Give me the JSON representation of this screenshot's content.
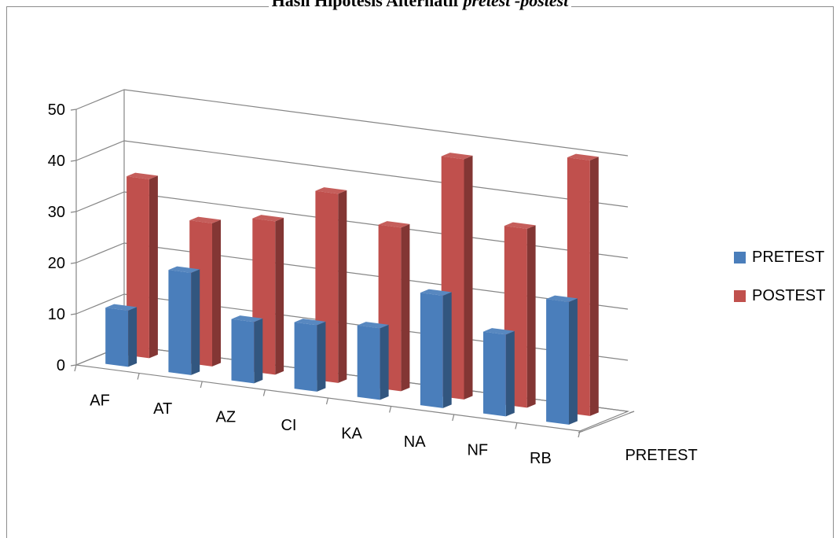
{
  "chart_data": {
    "type": "bar",
    "title_bold": "Hasil Hipotesis Alternatif ",
    "title_italic": "pretest -postest",
    "categories": [
      "AF",
      "AT",
      "AZ",
      "CI",
      "KA",
      "NA",
      "NF",
      "RB"
    ],
    "series": [
      {
        "name": "PRETEST",
        "values": [
          11,
          20,
          12,
          13,
          14,
          22,
          16,
          24
        ],
        "color": "#4a7ebb"
      },
      {
        "name": "POSTEST",
        "values": [
          35,
          28,
          30,
          37,
          32,
          47,
          35,
          50
        ],
        "color": "#c0504d"
      }
    ],
    "ylim": [
      0,
      50
    ],
    "yticks": [
      "0",
      "10",
      "20",
      "30",
      "40",
      "50"
    ],
    "depth_axis_label": "PRETEST",
    "legend_position": "right",
    "grid": true,
    "style": "3D clustered column"
  }
}
